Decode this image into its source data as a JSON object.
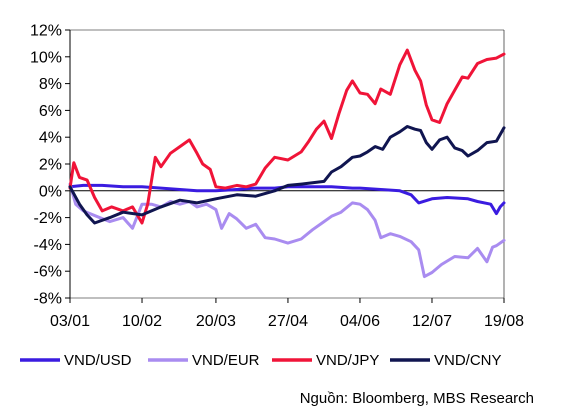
{
  "chart_data": {
    "type": "line",
    "title": "",
    "xlabel": "",
    "ylabel": "",
    "ylim": [
      -8,
      12
    ],
    "y_ticks": [
      "12%",
      "10%",
      "8%",
      "6%",
      "4%",
      "2%",
      "0%",
      "-2%",
      "-4%",
      "-6%",
      "-8%"
    ],
    "x_ticks": [
      "03/01",
      "10/02",
      "20/03",
      "27/04",
      "04/06",
      "12/07",
      "19/08"
    ],
    "x_domain": [
      "03/01",
      "19/08"
    ],
    "grid": false,
    "legend_position": "bottom",
    "source": "Nguồn: Bloomberg, MBS Research",
    "series": [
      {
        "name": "VND/USD",
        "color": "#3a1ce0",
        "points": [
          [
            "03/01",
            0.3
          ],
          [
            "10/01",
            0.4
          ],
          [
            "20/01",
            0.4
          ],
          [
            "31/01",
            0.3
          ],
          [
            "10/02",
            0.3
          ],
          [
            "20/02",
            0.2
          ],
          [
            "01/03",
            0.1
          ],
          [
            "10/03",
            0.0
          ],
          [
            "20/03",
            0.0
          ],
          [
            "31/03",
            0.1
          ],
          [
            "10/04",
            0.2
          ],
          [
            "20/04",
            0.2
          ],
          [
            "27/04",
            0.3
          ],
          [
            "10/05",
            0.3
          ],
          [
            "20/05",
            0.3
          ],
          [
            "31/05",
            0.2
          ],
          [
            "04/06",
            0.2
          ],
          [
            "15/06",
            0.1
          ],
          [
            "25/06",
            0.0
          ],
          [
            "01/07",
            -0.3
          ],
          [
            "05/07",
            -0.9
          ],
          [
            "12/07",
            -0.6
          ],
          [
            "20/07",
            -0.5
          ],
          [
            "31/07",
            -0.6
          ],
          [
            "05/08",
            -0.8
          ],
          [
            "12/08",
            -1.0
          ],
          [
            "15/08",
            -1.7
          ],
          [
            "17/08",
            -1.2
          ],
          [
            "19/08",
            -0.9
          ]
        ]
      },
      {
        "name": "VND/EUR",
        "color": "#a98cf0",
        "points": [
          [
            "03/01",
            0.5
          ],
          [
            "06/01",
            -1.0
          ],
          [
            "10/01",
            -1.5
          ],
          [
            "17/01",
            -1.9
          ],
          [
            "24/01",
            -2.3
          ],
          [
            "31/01",
            -2.0
          ],
          [
            "05/02",
            -2.8
          ],
          [
            "10/02",
            -1.0
          ],
          [
            "15/02",
            -1.0
          ],
          [
            "20/02",
            -1.2
          ],
          [
            "25/02",
            -0.8
          ],
          [
            "01/03",
            -1.0
          ],
          [
            "06/03",
            -0.8
          ],
          [
            "10/03",
            -1.2
          ],
          [
            "15/03",
            -1.0
          ],
          [
            "20/03",
            -1.4
          ],
          [
            "23/03",
            -2.8
          ],
          [
            "27/03",
            -1.7
          ],
          [
            "31/03",
            -2.1
          ],
          [
            "05/04",
            -2.8
          ],
          [
            "10/04",
            -2.5
          ],
          [
            "15/04",
            -3.5
          ],
          [
            "20/04",
            -3.6
          ],
          [
            "27/04",
            -3.9
          ],
          [
            "04/05",
            -3.6
          ],
          [
            "10/05",
            -2.9
          ],
          [
            "15/05",
            -2.4
          ],
          [
            "20/05",
            -1.9
          ],
          [
            "25/05",
            -1.6
          ],
          [
            "31/05",
            -0.9
          ],
          [
            "04/06",
            -1.0
          ],
          [
            "08/06",
            -1.4
          ],
          [
            "12/06",
            -2.2
          ],
          [
            "15/06",
            -3.5
          ],
          [
            "20/06",
            -3.2
          ],
          [
            "25/06",
            -3.4
          ],
          [
            "01/07",
            -3.8
          ],
          [
            "05/07",
            -4.4
          ],
          [
            "08/07",
            -6.4
          ],
          [
            "12/07",
            -6.1
          ],
          [
            "17/07",
            -5.5
          ],
          [
            "24/07",
            -4.9
          ],
          [
            "31/07",
            -5.0
          ],
          [
            "05/08",
            -4.3
          ],
          [
            "10/08",
            -5.3
          ],
          [
            "13/08",
            -4.2
          ],
          [
            "15/08",
            -4.1
          ],
          [
            "19/08",
            -3.7
          ]
        ]
      },
      {
        "name": "VND/JPY",
        "color": "#f01438",
        "points": [
          [
            "03/01",
            0.2
          ],
          [
            "05/01",
            2.1
          ],
          [
            "08/01",
            1.0
          ],
          [
            "12/01",
            0.8
          ],
          [
            "16/01",
            -0.5
          ],
          [
            "20/01",
            -1.5
          ],
          [
            "25/01",
            -1.2
          ],
          [
            "31/01",
            -1.5
          ],
          [
            "05/02",
            -1.2
          ],
          [
            "10/02",
            -2.4
          ],
          [
            "13/02",
            -1.0
          ],
          [
            "17/02",
            2.5
          ],
          [
            "20/02",
            1.8
          ],
          [
            "25/02",
            2.8
          ],
          [
            "01/03",
            3.3
          ],
          [
            "06/03",
            3.8
          ],
          [
            "10/03",
            2.8
          ],
          [
            "13/03",
            2.0
          ],
          [
            "17/03",
            1.6
          ],
          [
            "20/03",
            0.3
          ],
          [
            "25/03",
            0.2
          ],
          [
            "31/03",
            0.4
          ],
          [
            "05/04",
            0.3
          ],
          [
            "10/04",
            0.5
          ],
          [
            "15/04",
            1.7
          ],
          [
            "20/04",
            2.5
          ],
          [
            "27/04",
            2.3
          ],
          [
            "04/05",
            2.9
          ],
          [
            "08/05",
            3.7
          ],
          [
            "12/05",
            4.6
          ],
          [
            "16/05",
            5.2
          ],
          [
            "20/05",
            3.9
          ],
          [
            "24/05",
            5.8
          ],
          [
            "28/05",
            7.5
          ],
          [
            "31/05",
            8.2
          ],
          [
            "04/06",
            7.3
          ],
          [
            "08/06",
            7.2
          ],
          [
            "12/06",
            6.5
          ],
          [
            "15/06",
            7.6
          ],
          [
            "20/06",
            7.2
          ],
          [
            "25/06",
            9.4
          ],
          [
            "29/06",
            10.5
          ],
          [
            "03/07",
            9.0
          ],
          [
            "06/07",
            8.2
          ],
          [
            "09/07",
            6.4
          ],
          [
            "12/07",
            5.3
          ],
          [
            "16/07",
            5.1
          ],
          [
            "20/07",
            6.5
          ],
          [
            "24/07",
            7.5
          ],
          [
            "28/07",
            8.5
          ],
          [
            "31/07",
            8.4
          ],
          [
            "05/08",
            9.5
          ],
          [
            "10/08",
            9.8
          ],
          [
            "15/08",
            9.9
          ],
          [
            "19/08",
            10.2
          ]
        ]
      },
      {
        "name": "VND/CNY",
        "color": "#101550",
        "points": [
          [
            "03/01",
            0.3
          ],
          [
            "08/01",
            -1.0
          ],
          [
            "12/01",
            -1.8
          ],
          [
            "16/01",
            -2.4
          ],
          [
            "24/01",
            -2.0
          ],
          [
            "31/01",
            -1.6
          ],
          [
            "10/02",
            -1.8
          ],
          [
            "20/02",
            -1.2
          ],
          [
            "01/03",
            -0.7
          ],
          [
            "10/03",
            -0.9
          ],
          [
            "20/03",
            -0.6
          ],
          [
            "31/03",
            -0.3
          ],
          [
            "10/04",
            -0.4
          ],
          [
            "20/04",
            0.0
          ],
          [
            "27/04",
            0.4
          ],
          [
            "04/05",
            0.5
          ],
          [
            "10/05",
            0.6
          ],
          [
            "16/05",
            0.7
          ],
          [
            "20/05",
            1.4
          ],
          [
            "25/05",
            1.8
          ],
          [
            "31/05",
            2.5
          ],
          [
            "04/06",
            2.6
          ],
          [
            "08/06",
            2.9
          ],
          [
            "12/06",
            3.3
          ],
          [
            "16/06",
            3.1
          ],
          [
            "20/06",
            4.0
          ],
          [
            "25/06",
            4.4
          ],
          [
            "29/06",
            4.8
          ],
          [
            "03/07",
            4.6
          ],
          [
            "06/07",
            4.5
          ],
          [
            "09/07",
            3.6
          ],
          [
            "12/07",
            3.1
          ],
          [
            "16/07",
            3.8
          ],
          [
            "20/07",
            4.0
          ],
          [
            "24/07",
            3.2
          ],
          [
            "28/07",
            3.0
          ],
          [
            "31/07",
            2.6
          ],
          [
            "05/08",
            3.0
          ],
          [
            "10/08",
            3.6
          ],
          [
            "15/08",
            3.7
          ],
          [
            "19/08",
            4.7
          ]
        ]
      }
    ]
  }
}
